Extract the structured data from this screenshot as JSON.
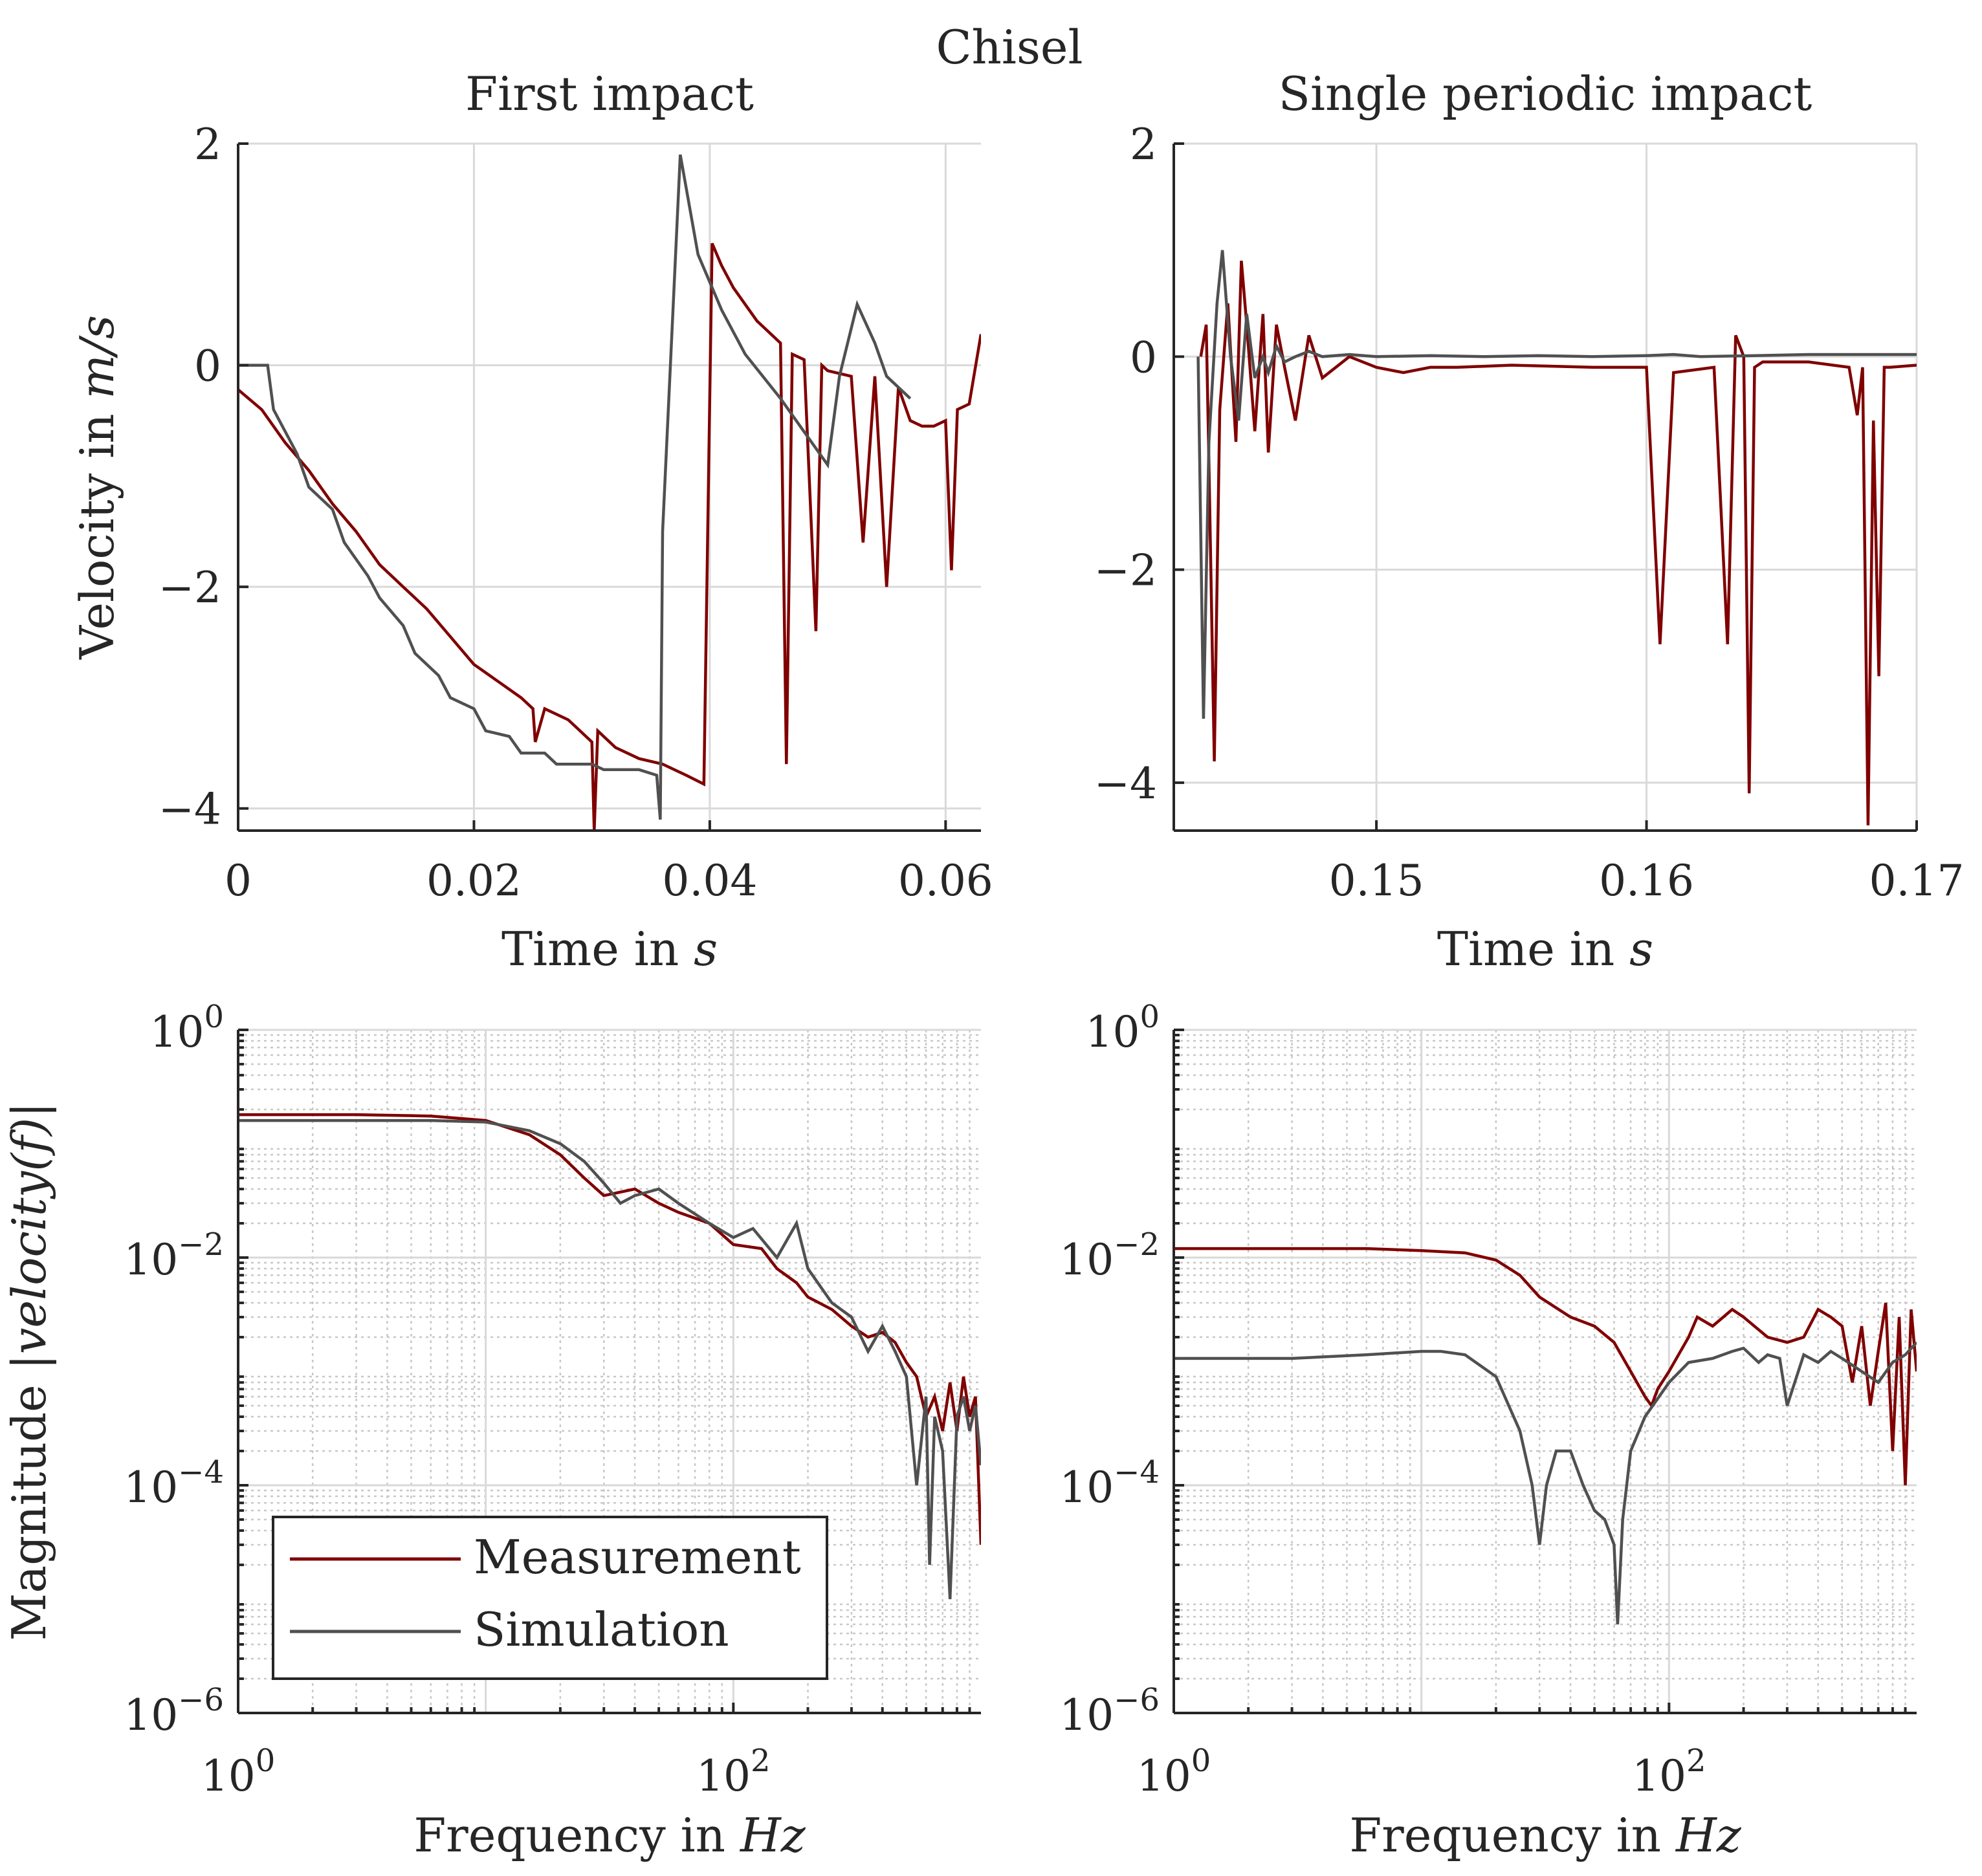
{
  "figure": {
    "title": "Chisel"
  },
  "legend": {
    "entries": [
      {
        "label": "Measurement",
        "color": "#800000"
      },
      {
        "label": "Simulation",
        "color": "#505050"
      }
    ],
    "placement": "bottom-left of lower-left panel"
  },
  "chart_data": [
    {
      "type": "line",
      "title": "First impact",
      "xlabel_text": "Time in ",
      "xlabel_var": "s",
      "ylabel_text": "Velocity in ",
      "ylabel_var": "m/s",
      "xlim": [
        0,
        0.063
      ],
      "ylim": [
        -4.2,
        2
      ],
      "xticks": [
        0,
        0.02,
        0.04,
        0.06
      ],
      "xtick_labels": [
        "0",
        "0.02",
        "0.04",
        "0.06"
      ],
      "yticks": [
        -4,
        -2,
        0,
        2
      ],
      "ytick_labels": [
        "−4",
        "−2",
        "0",
        "2"
      ],
      "grid": true,
      "series": [
        {
          "name": "Measurement",
          "color": "#800000",
          "x": [
            0,
            0.002,
            0.004,
            0.006,
            0.008,
            0.01,
            0.012,
            0.014,
            0.016,
            0.018,
            0.02,
            0.022,
            0.024,
            0.025,
            0.0252,
            0.026,
            0.028,
            0.03,
            0.0302,
            0.0305,
            0.032,
            0.034,
            0.036,
            0.038,
            0.0395,
            0.0402,
            0.041,
            0.042,
            0.044,
            0.046,
            0.0465,
            0.047,
            0.048,
            0.049,
            0.0495,
            0.05,
            0.052,
            0.053,
            0.054,
            0.055,
            0.056,
            0.057,
            0.058,
            0.059,
            0.06,
            0.0605,
            0.061,
            0.062,
            0.063
          ],
          "y": [
            -0.22,
            -0.4,
            -0.7,
            -0.95,
            -1.25,
            -1.5,
            -1.8,
            -2.0,
            -2.2,
            -2.45,
            -2.7,
            -2.85,
            -3.0,
            -3.1,
            -3.4,
            -3.1,
            -3.2,
            -3.4,
            -4.2,
            -3.3,
            -3.45,
            -3.55,
            -3.6,
            -3.7,
            -3.78,
            1.1,
            0.9,
            0.7,
            0.4,
            0.2,
            -3.6,
            0.1,
            0.05,
            -2.4,
            0.0,
            -0.05,
            -0.1,
            -1.6,
            -0.1,
            -2.0,
            -0.2,
            -0.5,
            -0.55,
            -0.55,
            -0.5,
            -1.85,
            -0.4,
            -0.35,
            0.28
          ]
        },
        {
          "name": "Simulation",
          "color": "#505050",
          "x": [
            0,
            0.0025,
            0.003,
            0.005,
            0.006,
            0.008,
            0.009,
            0.011,
            0.012,
            0.014,
            0.015,
            0.017,
            0.018,
            0.02,
            0.021,
            0.023,
            0.024,
            0.026,
            0.027,
            0.03,
            0.031,
            0.034,
            0.0355,
            0.0358,
            0.036,
            0.0375,
            0.039,
            0.041,
            0.043,
            0.046,
            0.048,
            0.05,
            0.051,
            0.0525,
            0.054,
            0.055,
            0.057
          ],
          "y": [
            0,
            0,
            -0.4,
            -0.8,
            -1.1,
            -1.3,
            -1.6,
            -1.9,
            -2.1,
            -2.35,
            -2.6,
            -2.8,
            -3.0,
            -3.1,
            -3.3,
            -3.35,
            -3.5,
            -3.5,
            -3.6,
            -3.6,
            -3.65,
            -3.65,
            -3.7,
            -4.1,
            -1.5,
            1.9,
            1.0,
            0.5,
            0.1,
            -0.3,
            -0.6,
            -0.9,
            -0.1,
            0.55,
            0.2,
            -0.1,
            -0.3
          ]
        }
      ]
    },
    {
      "type": "line",
      "title": "Single periodic impact",
      "xlabel_text": "Time in ",
      "xlabel_var": "s",
      "xlim": [
        0.1425,
        0.17
      ],
      "ylim": [
        -4.45,
        2
      ],
      "xticks": [
        0.15,
        0.16,
        0.17
      ],
      "xtick_labels": [
        "0.15",
        "0.16",
        "0.17"
      ],
      "yticks": [
        -4,
        -2,
        0,
        2
      ],
      "ytick_labels": [
        "−4",
        "−2",
        "0",
        "2"
      ],
      "grid": true,
      "series": [
        {
          "name": "Measurement",
          "color": "#800000",
          "x": [
            0.1435,
            0.1437,
            0.1438,
            0.144,
            0.1442,
            0.1445,
            0.1448,
            0.145,
            0.1452,
            0.1455,
            0.1458,
            0.146,
            0.1463,
            0.1466,
            0.147,
            0.1475,
            0.148,
            0.149,
            0.15,
            0.151,
            0.152,
            0.153,
            0.155,
            0.158,
            0.16,
            0.1605,
            0.161,
            0.1625,
            0.163,
            0.1633,
            0.1636,
            0.1638,
            0.164,
            0.1643,
            0.165,
            0.166,
            0.1675,
            0.1678,
            0.168,
            0.1682,
            0.1684,
            0.1686,
            0.1688,
            0.169,
            0.17
          ],
          "y": [
            0.0,
            0.3,
            -1.0,
            -3.8,
            -0.5,
            0.5,
            -0.8,
            0.9,
            0.3,
            -0.7,
            0.4,
            -0.9,
            0.3,
            -0.1,
            -0.6,
            0.2,
            -0.2,
            0.0,
            -0.1,
            -0.15,
            -0.1,
            -0.1,
            -0.08,
            -0.1,
            -0.1,
            -2.7,
            -0.15,
            -0.1,
            -2.7,
            0.2,
            0.0,
            -4.1,
            -0.1,
            -0.05,
            -0.05,
            -0.05,
            -0.1,
            -0.55,
            -0.1,
            -4.4,
            -0.6,
            -3.0,
            -0.1,
            -0.1,
            -0.08
          ]
        },
        {
          "name": "Simulation",
          "color": "#505050",
          "x": [
            0.1434,
            0.1436,
            0.1438,
            0.1441,
            0.1443,
            0.1446,
            0.1449,
            0.1452,
            0.1455,
            0.1458,
            0.146,
            0.1463,
            0.1466,
            0.147,
            0.1475,
            0.148,
            0.149,
            0.15,
            0.152,
            0.154,
            0.156,
            0.158,
            0.16,
            0.161,
            0.162,
            0.164,
            0.166,
            0.168,
            0.17
          ],
          "y": [
            0.0,
            -3.4,
            -0.8,
            0.5,
            1.0,
            0.0,
            -0.6,
            0.4,
            -0.2,
            0.0,
            -0.15,
            0.1,
            -0.05,
            0.0,
            0.05,
            0.0,
            0.02,
            0.0,
            0.01,
            0.0,
            0.01,
            0.0,
            0.01,
            0.02,
            0.0,
            0.01,
            0.02,
            0.02,
            0.02
          ]
        }
      ]
    },
    {
      "type": "line",
      "scale": "log-log",
      "xlabel_text": "Frequency in ",
      "xlabel_var": "Hz",
      "ylabel_text": "Magnitude |",
      "ylabel_var": "velocity(f)",
      "ylabel_suffix": "|",
      "xlim": [
        1,
        1000
      ],
      "ylim": [
        1e-06,
        1
      ],
      "xtick_labels": [
        {
          "base": "10",
          "exp": "0"
        },
        {
          "base": "10",
          "exp": "2"
        }
      ],
      "ytick_labels": [
        {
          "base": "10",
          "exp": "0"
        },
        {
          "base": "10",
          "exp": "−2"
        },
        {
          "base": "10",
          "exp": "−4"
        },
        {
          "base": "10",
          "exp": "−6"
        }
      ],
      "grid": true,
      "series": [
        {
          "name": "Measurement",
          "color": "#800000",
          "x": [
            1,
            3,
            6,
            10,
            15,
            20,
            25,
            30,
            40,
            50,
            60,
            80,
            100,
            130,
            150,
            180,
            200,
            250,
            300,
            350,
            400,
            450,
            500,
            550,
            600,
            650,
            700,
            750,
            800,
            850,
            900,
            950,
            1000
          ],
          "y": [
            0.18,
            0.18,
            0.175,
            0.16,
            0.12,
            0.08,
            0.05,
            0.035,
            0.04,
            0.03,
            0.025,
            0.02,
            0.013,
            0.012,
            0.008,
            0.006,
            0.0045,
            0.0035,
            0.0025,
            0.002,
            0.0022,
            0.0018,
            0.0012,
            0.0009,
            0.0004,
            0.0006,
            0.0003,
            0.0008,
            0.0003,
            0.0009,
            0.0004,
            0.0006,
            3e-05
          ]
        },
        {
          "name": "Simulation",
          "color": "#505050",
          "x": [
            1,
            3,
            6,
            10,
            15,
            20,
            25,
            30,
            35,
            40,
            50,
            60,
            80,
            100,
            120,
            150,
            180,
            200,
            250,
            300,
            350,
            400,
            450,
            500,
            550,
            600,
            620,
            650,
            700,
            750,
            800,
            850,
            900,
            950,
            1000
          ],
          "y": [
            0.16,
            0.16,
            0.16,
            0.155,
            0.13,
            0.1,
            0.07,
            0.045,
            0.03,
            0.035,
            0.04,
            0.03,
            0.02,
            0.015,
            0.018,
            0.01,
            0.02,
            0.008,
            0.004,
            0.003,
            0.0015,
            0.0025,
            0.0015,
            0.0009,
            0.0001,
            0.0006,
            2e-05,
            0.0004,
            0.0002,
            1e-05,
            0.0004,
            0.0006,
            0.0003,
            0.0005,
            0.00015
          ]
        }
      ]
    },
    {
      "type": "line",
      "scale": "log-log",
      "xlabel_text": "Frequency in ",
      "xlabel_var": "Hz",
      "xlim": [
        1,
        1000
      ],
      "ylim": [
        1e-06,
        1
      ],
      "xtick_labels": [
        {
          "base": "10",
          "exp": "0"
        },
        {
          "base": "10",
          "exp": "2"
        }
      ],
      "ytick_labels": [
        {
          "base": "10",
          "exp": "0"
        },
        {
          "base": "10",
          "exp": "−2"
        },
        {
          "base": "10",
          "exp": "−4"
        },
        {
          "base": "10",
          "exp": "−6"
        }
      ],
      "grid": true,
      "series": [
        {
          "name": "Measurement",
          "color": "#800000",
          "x": [
            1,
            3,
            6,
            10,
            15,
            20,
            25,
            30,
            40,
            50,
            60,
            70,
            80,
            85,
            90,
            100,
            120,
            130,
            150,
            180,
            200,
            250,
            300,
            350,
            400,
            450,
            500,
            550,
            600,
            650,
            700,
            750,
            800,
            850,
            900,
            950,
            1000
          ],
          "y": [
            0.012,
            0.012,
            0.012,
            0.0115,
            0.011,
            0.0095,
            0.007,
            0.0045,
            0.003,
            0.0025,
            0.0018,
            0.001,
            0.0006,
            0.0005,
            0.0007,
            0.001,
            0.002,
            0.003,
            0.0025,
            0.0035,
            0.003,
            0.002,
            0.0018,
            0.002,
            0.0035,
            0.003,
            0.0025,
            0.0008,
            0.0025,
            0.0005,
            0.0015,
            0.004,
            0.0002,
            0.003,
            0.0001,
            0.0035,
            0.001
          ]
        },
        {
          "name": "Simulation",
          "color": "#505050",
          "x": [
            1,
            3,
            6,
            10,
            12,
            15,
            20,
            25,
            28,
            30,
            32,
            35,
            40,
            45,
            50,
            55,
            60,
            62,
            65,
            70,
            80,
            100,
            120,
            150,
            180,
            200,
            230,
            250,
            280,
            300,
            350,
            400,
            450,
            500,
            600,
            700,
            800,
            900,
            1000
          ],
          "y": [
            0.0013,
            0.0013,
            0.0014,
            0.0015,
            0.0015,
            0.0014,
            0.0009,
            0.0003,
            0.0001,
            3e-05,
            0.0001,
            0.0002,
            0.0002,
            0.0001,
            6e-05,
            5e-05,
            3e-05,
            6e-06,
            5e-05,
            0.0002,
            0.0004,
            0.0008,
            0.0012,
            0.0013,
            0.0015,
            0.0016,
            0.0012,
            0.0014,
            0.0013,
            0.0005,
            0.0014,
            0.0012,
            0.0015,
            0.0013,
            0.001,
            0.0008,
            0.0012,
            0.0014,
            0.0018
          ]
        }
      ]
    }
  ]
}
